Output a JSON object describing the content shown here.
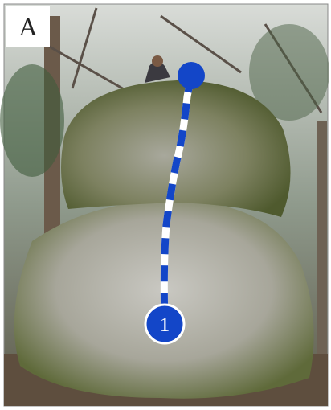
{
  "panel_label": "A",
  "route": {
    "number": "1"
  }
}
